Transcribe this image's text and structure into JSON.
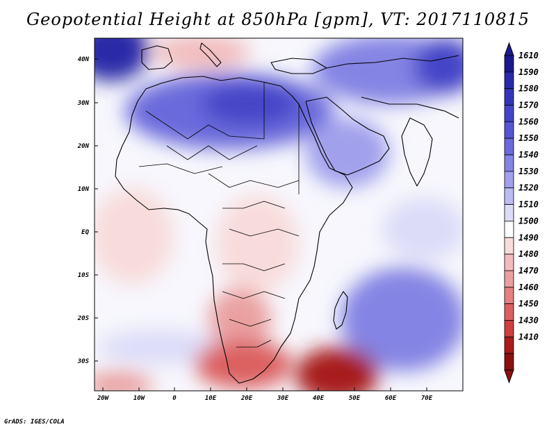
{
  "title": "Geopotential Height at 850hPa [gpm], VT: 2017110815",
  "footer": "GrADS: IGES/COLA",
  "map": {
    "region": "Africa and Arabian Peninsula",
    "lon_range": [
      -22,
      80
    ],
    "lat_range": [
      -37,
      45
    ],
    "lon_ticks": [
      "20W",
      "10W",
      "0",
      "10E",
      "20E",
      "30E",
      "40E",
      "50E",
      "60E",
      "70E"
    ],
    "lat_ticks": [
      "40N",
      "30N",
      "20N",
      "10N",
      "EQ",
      "10S",
      "20S",
      "30S"
    ]
  },
  "colorbar": {
    "labels": [
      "1610",
      "1590",
      "1580",
      "1570",
      "1560",
      "1550",
      "1540",
      "1530",
      "1520",
      "1510",
      "1500",
      "1490",
      "1480",
      "1470",
      "1460",
      "1450",
      "1430",
      "1410"
    ],
    "colors": [
      "#1a1a8c",
      "#2a2aa8",
      "#3434b8",
      "#4444c8",
      "#5656d2",
      "#6a6adc",
      "#8484e4",
      "#a0a0ec",
      "#bcbcf2",
      "#dcdcf8",
      "#ffffff",
      "#f8dcdc",
      "#f2bcbc",
      "#eaa0a0",
      "#e48080",
      "#dc6060",
      "#cc4040",
      "#a81c1c",
      "#8a1010"
    ]
  }
}
